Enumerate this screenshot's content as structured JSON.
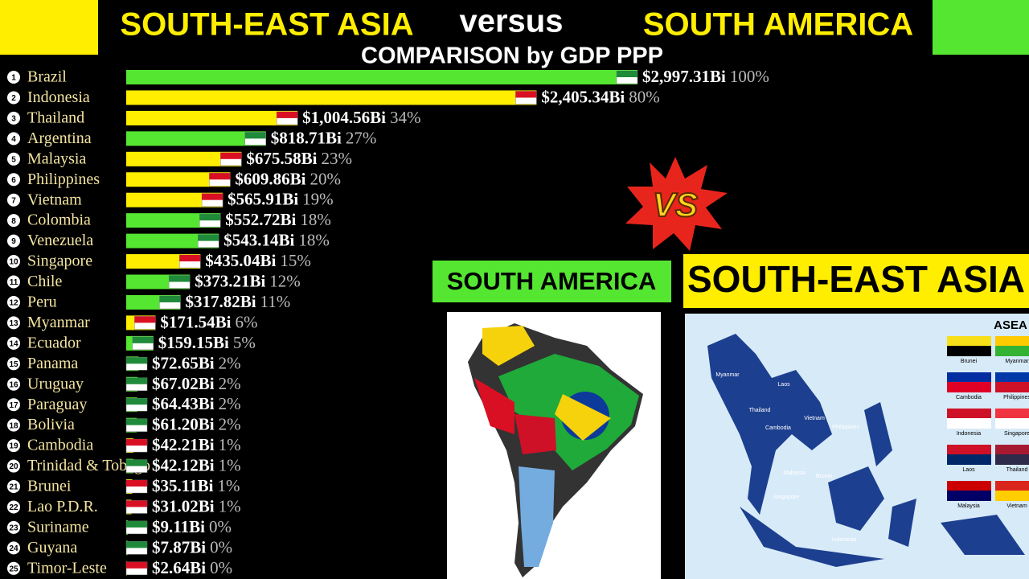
{
  "chart_data": {
    "type": "bar",
    "title": "versus",
    "subtitle": "COMPARISON by GDP PPP",
    "categories": [
      "Brazil",
      "Indonesia",
      "Thailand",
      "Argentina",
      "Malaysia",
      "Philippines",
      "Vietnam",
      "Colombia",
      "Venezuela",
      "Singapore",
      "Chile",
      "Peru",
      "Myanmar",
      "Ecuador",
      "Panama",
      "Uruguay",
      "Paraguay",
      "Bolivia",
      "Cambodia",
      "Trinidad & Tobago",
      "Brunei",
      "Lao P.D.R.",
      "Suriname",
      "Guyana",
      "Timor-Leste"
    ],
    "ranks": [
      1,
      2,
      3,
      4,
      5,
      6,
      7,
      8,
      9,
      10,
      11,
      12,
      13,
      14,
      15,
      16,
      17,
      18,
      19,
      20,
      21,
      22,
      23,
      24,
      25
    ],
    "series": [
      {
        "name": "SOUTH-EAST ASIA",
        "color": "#ffee00",
        "values": [
          null,
          2405.34,
          1004.56,
          null,
          675.58,
          609.86,
          565.91,
          null,
          null,
          435.04,
          null,
          null,
          171.54,
          null,
          null,
          null,
          null,
          null,
          42.21,
          null,
          35.11,
          31.02,
          null,
          null,
          2.64
        ],
        "value_labels": [
          null,
          "$2,405.34Bi",
          "$1,004.56Bi",
          null,
          "$675.58Bi",
          "$609.86Bi",
          "$565.91Bi",
          null,
          null,
          "$435.04Bi",
          null,
          null,
          "$171.54Bi",
          null,
          null,
          null,
          null,
          null,
          "$42.21Bi",
          null,
          "$35.11Bi",
          "$31.02Bi",
          null,
          null,
          "$2.64Bi"
        ],
        "shares": [
          null,
          80,
          34,
          null,
          23,
          20,
          19,
          null,
          null,
          15,
          null,
          null,
          6,
          null,
          null,
          null,
          null,
          null,
          1,
          null,
          1,
          1,
          null,
          null,
          0
        ],
        "share_labels": [
          null,
          "80%",
          "34%",
          null,
          "23%",
          "20%",
          "19%",
          null,
          null,
          "15%",
          null,
          null,
          "6%",
          null,
          null,
          null,
          null,
          null,
          "1%",
          null,
          "1%",
          "1%",
          null,
          null,
          "0%"
        ]
      },
      {
        "name": "SOUTH AMERICA",
        "color": "#55e632",
        "values": [
          2997.31,
          null,
          null,
          818.71,
          null,
          null,
          null,
          552.72,
          543.14,
          null,
          373.21,
          317.82,
          null,
          159.15,
          72.65,
          67.02,
          64.43,
          61.2,
          null,
          42.12,
          null,
          null,
          9.11,
          7.87,
          null
        ],
        "value_labels": [
          "$2,997.31Bi",
          null,
          null,
          "$818.71Bi",
          null,
          null,
          null,
          "$552.72Bi",
          "$543.14Bi",
          null,
          "$373.21Bi",
          "$317.82Bi",
          null,
          "$159.15Bi",
          "$72.65Bi",
          "$67.02Bi",
          "$64.43Bi",
          "$61.20Bi",
          null,
          "$42.12Bi",
          null,
          null,
          "$9.11Bi",
          "$7.87Bi",
          null
        ],
        "shares": [
          100,
          null,
          null,
          27,
          null,
          null,
          null,
          18,
          18,
          null,
          12,
          11,
          null,
          5,
          2,
          2,
          2,
          2,
          null,
          1,
          null,
          null,
          0,
          0,
          null
        ],
        "share_labels": [
          "100%",
          null,
          null,
          "27%",
          null,
          null,
          null,
          "18%",
          "18%",
          null,
          "12%",
          "11%",
          null,
          "5%",
          "2%",
          "2%",
          "2%",
          "2%",
          null,
          "1%",
          null,
          null,
          "0%",
          "0%",
          null
        ]
      }
    ]
  },
  "panels": {
    "vs": "VS",
    "south_america": "SOUTH AMERICA",
    "south_east_asia": "SOUTH-EAST ASIA",
    "asean_heading": "ASEA",
    "map_labels": [
      "Myanmar",
      "Laos",
      "Thailand",
      "Vietnam",
      "Cambodia",
      "Philippines",
      "Malaysia",
      "Brunei",
      "Singapore",
      "Indonesia"
    ],
    "flag_labels": [
      "Brunei",
      "Myanmar",
      "Cambodia",
      "Philippines",
      "Indonesia",
      "Singapore",
      "Laos",
      "Thailand",
      "Malaysia",
      "Vietnam"
    ]
  }
}
